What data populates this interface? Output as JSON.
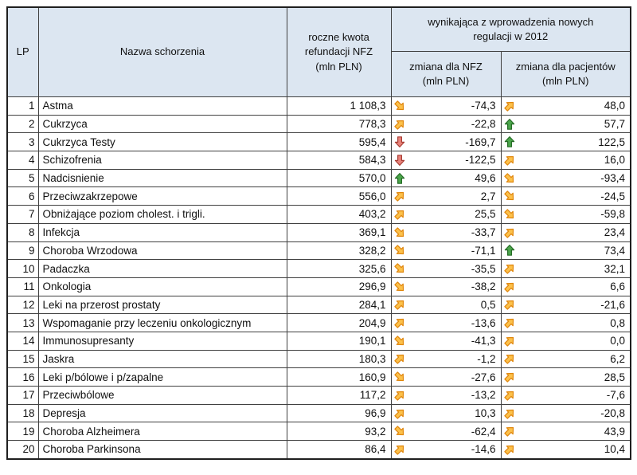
{
  "header": {
    "lp": "LP",
    "name": "Nazwa schorzenia",
    "annual": "roczne kwota\nrefundacji NFZ\n(mln PLN)",
    "group": "wynikająca z wprowadzenia nowych\nregulacji w 2012",
    "nfz": "zmiana dla NFZ\n(mln PLN)",
    "patient": "zmiana dla pacjentów\n(mln PLN)"
  },
  "colors": {
    "header_bg": "#dce6f1",
    "border": "#404040",
    "text": "#111111"
  },
  "icons": {
    "up": {
      "fill": "#4ca64c",
      "stroke": "#256c25"
    },
    "down": {
      "fill": "#e8837b",
      "stroke": "#a83c32"
    },
    "up-right": {
      "fill": "#fcc14b",
      "stroke": "#e0860c"
    },
    "down-right": {
      "fill": "#fcc14b",
      "stroke": "#e0860c"
    }
  },
  "chart_data": {
    "type": "table",
    "title": "",
    "columns": [
      "LP",
      "Nazwa schorzenia",
      "roczne kwota refundacji NFZ (mln PLN)",
      "zmiana dla NFZ (mln PLN)",
      "zmiana dla pacjentów (mln PLN)"
    ],
    "group_header": "wynikająca z wprowadzenia nowych regulacji w 2012",
    "rows": [
      {
        "lp": "1",
        "name": "Astma",
        "annual": "1 108,3",
        "nfz_trend": "down-right",
        "nfz": "-74,3",
        "patient_trend": "up-right",
        "patient": "48,0"
      },
      {
        "lp": "2",
        "name": "Cukrzyca",
        "annual": "778,3",
        "nfz_trend": "up-right",
        "nfz": "-22,8",
        "patient_trend": "up",
        "patient": "57,7"
      },
      {
        "lp": "3",
        "name": "Cukrzyca Testy",
        "annual": "595,4",
        "nfz_trend": "down",
        "nfz": "-169,7",
        "patient_trend": "up",
        "patient": "122,5"
      },
      {
        "lp": "4",
        "name": "Schizofrenia",
        "annual": "584,3",
        "nfz_trend": "down",
        "nfz": "-122,5",
        "patient_trend": "up-right",
        "patient": "16,0"
      },
      {
        "lp": "5",
        "name": "Nadcisnienie",
        "annual": "570,0",
        "nfz_trend": "up",
        "nfz": "49,6",
        "patient_trend": "down-right",
        "patient": "-93,4"
      },
      {
        "lp": "6",
        "name": "Przeciwzakrzepowe",
        "annual": "556,0",
        "nfz_trend": "up-right",
        "nfz": "2,7",
        "patient_trend": "down-right",
        "patient": "-24,5"
      },
      {
        "lp": "7",
        "name": "Obniżające poziom cholest. i trigli.",
        "annual": "403,2",
        "nfz_trend": "up-right",
        "nfz": "25,5",
        "patient_trend": "down-right",
        "patient": "-59,8"
      },
      {
        "lp": "8",
        "name": "Infekcja",
        "annual": "369,1",
        "nfz_trend": "down-right",
        "nfz": "-33,7",
        "patient_trend": "up-right",
        "patient": "23,4"
      },
      {
        "lp": "9",
        "name": "Choroba Wrzodowa",
        "annual": "328,2",
        "nfz_trend": "down-right",
        "nfz": "-71,1",
        "patient_trend": "up",
        "patient": "73,4"
      },
      {
        "lp": "10",
        "name": "Padaczka",
        "annual": "325,6",
        "nfz_trend": "down-right",
        "nfz": "-35,5",
        "patient_trend": "up-right",
        "patient": "32,1"
      },
      {
        "lp": "11",
        "name": "Onkologia",
        "annual": "296,9",
        "nfz_trend": "down-right",
        "nfz": "-38,2",
        "patient_trend": "up-right",
        "patient": "6,6"
      },
      {
        "lp": "12",
        "name": "Leki na przerost prostaty",
        "annual": "284,1",
        "nfz_trend": "up-right",
        "nfz": "0,5",
        "patient_trend": "up-right",
        "patient": "-21,6"
      },
      {
        "lp": "13",
        "name": "Wspomaganie przy leczeniu onkologicznym",
        "annual": "204,9",
        "nfz_trend": "up-right",
        "nfz": "-13,6",
        "patient_trend": "up-right",
        "patient": "0,8"
      },
      {
        "lp": "14",
        "name": "Immunosupresanty",
        "annual": "190,1",
        "nfz_trend": "down-right",
        "nfz": "-41,3",
        "patient_trend": "up-right",
        "patient": "0,0"
      },
      {
        "lp": "15",
        "name": "Jaskra",
        "annual": "180,3",
        "nfz_trend": "up-right",
        "nfz": "-1,2",
        "patient_trend": "up-right",
        "patient": "6,2"
      },
      {
        "lp": "16",
        "name": "Leki p/bólowe i p/zapalne",
        "annual": "160,9",
        "nfz_trend": "down-right",
        "nfz": "-27,6",
        "patient_trend": "up-right",
        "patient": "28,5"
      },
      {
        "lp": "17",
        "name": "Przeciwbólowe",
        "annual": "117,2",
        "nfz_trend": "up-right",
        "nfz": "-13,2",
        "patient_trend": "up-right",
        "patient": "-7,6"
      },
      {
        "lp": "18",
        "name": "Depresja",
        "annual": "96,9",
        "nfz_trend": "up-right",
        "nfz": "10,3",
        "patient_trend": "up-right",
        "patient": "-20,8"
      },
      {
        "lp": "19",
        "name": "Choroba Alzheimera",
        "annual": "93,2",
        "nfz_trend": "down-right",
        "nfz": "-62,4",
        "patient_trend": "up-right",
        "patient": "43,9"
      },
      {
        "lp": "20",
        "name": "Choroba Parkinsona",
        "annual": "86,4",
        "nfz_trend": "up-right",
        "nfz": "-14,6",
        "patient_trend": "up-right",
        "patient": "10,4"
      }
    ]
  }
}
